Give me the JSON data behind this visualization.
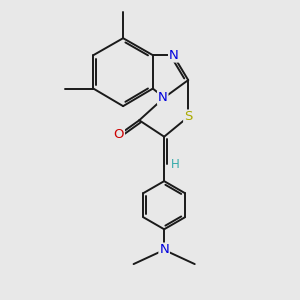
{
  "bg_color": "#e8e8e8",
  "bond_color": "#1a1a1a",
  "lw": 1.4,
  "fs": 8.5,
  "N_color": "#0000dd",
  "O_color": "#cc0000",
  "S_color": "#aaaa00",
  "H_color": "#33aaaa",
  "figsize": [
    3.0,
    3.0
  ],
  "dpi": 100,
  "xlim": [
    0.5,
    9.5
  ],
  "ylim": [
    0.0,
    10.5
  ]
}
